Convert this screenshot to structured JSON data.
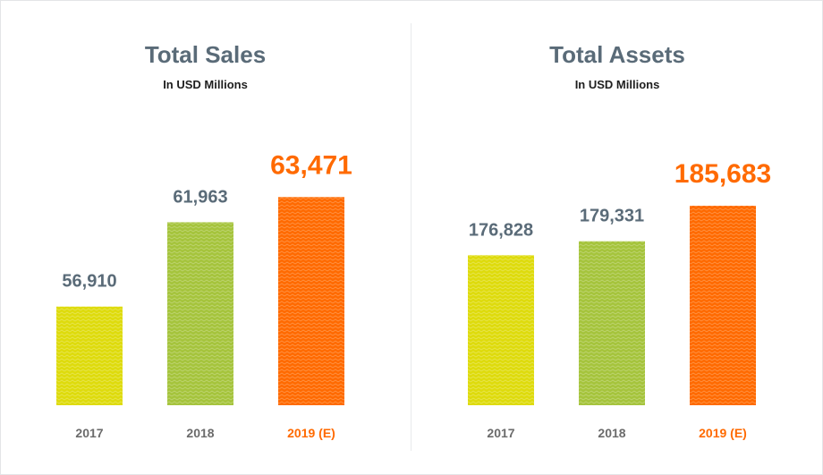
{
  "colors": {
    "y2017": "#dedb0c",
    "y2018": "#a5c43c",
    "y2019": "#ff6a00",
    "value_normal": "#5a6b78",
    "value_highlight": "#ff6a00",
    "tick_normal": "#6b6b6b",
    "tick_highlight": "#ff6a00"
  },
  "chart_data": [
    {
      "type": "bar",
      "title": "Total Sales",
      "subtitle": "In USD Millions",
      "categories": [
        "2017",
        "2018",
        "2019 (E)"
      ],
      "values": [
        56910,
        61963,
        63471
      ],
      "value_labels": [
        "56,910",
        "61,963",
        "63,471"
      ],
      "highlight_index": 2,
      "xlabel": "",
      "ylabel": "",
      "grid": false,
      "ylim": [
        51000,
        64400
      ]
    },
    {
      "type": "bar",
      "title": "Total Assets",
      "subtitle": "In USD Millions",
      "categories": [
        "2017",
        "2018",
        "2019 (E)"
      ],
      "values": [
        176828,
        179331,
        185683
      ],
      "value_labels": [
        "176,828",
        "179,331",
        "185,683"
      ],
      "highlight_index": 2,
      "xlabel": "",
      "ylabel": "",
      "grid": false,
      "ylim": [
        150000,
        190000
      ]
    }
  ]
}
